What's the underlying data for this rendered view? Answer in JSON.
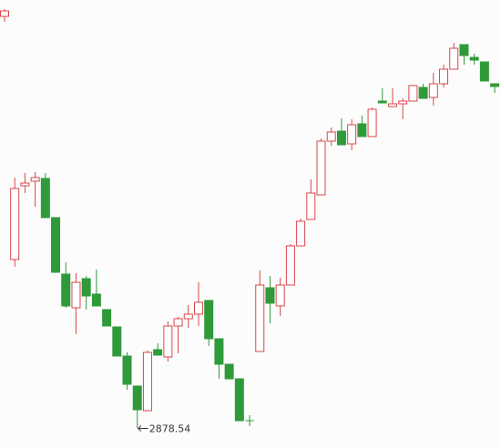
{
  "chart_data": {
    "type": "candlestick",
    "up_color": "#d9474b",
    "down_color": "#2f9a3a",
    "ylim": [
      2857,
      3349
    ],
    "open": [
      3331,
      3064,
      3145,
      3150,
      3153,
      3110,
      3048,
      3011,
      3043,
      3026,
      3009,
      2990,
      2958,
      2925,
      2898,
      2965,
      2957,
      2991,
      2999,
      3004,
      3019,
      2977,
      2949,
      2933,
      2887,
      2963,
      3033,
      3013,
      3036,
      3079,
      3108,
      3135,
      3194,
      3205,
      3191,
      3213,
      3199,
      3238,
      3232,
      3235,
      3238,
      3253,
      3242,
      3257,
      3273,
      3300,
      3286,
      3281,
      3257
    ],
    "high": [
      3339,
      3154,
      3159,
      3160,
      3159,
      3110,
      3061,
      3049,
      3046,
      3053,
      3009,
      2990,
      2962,
      2925,
      2964,
      2972,
      2996,
      3001,
      3014,
      3039,
      3019,
      2977,
      2949,
      2933,
      2893,
      3052,
      3046,
      3044,
      3081,
      3109,
      3152,
      3197,
      3209,
      3219,
      3218,
      3222,
      3231,
      3252,
      3252,
      3241,
      3256,
      3257,
      3269,
      3278,
      3302,
      3300,
      3290,
      3281,
      3257
    ],
    "low": [
      3325,
      3056,
      3137,
      3122,
      3110,
      3050,
      3011,
      2982,
      3009,
      3013,
      2991,
      2958,
      2921,
      2878.54,
      2898,
      2959,
      2952,
      2961,
      2989,
      2991,
      2969,
      2933,
      2933,
      2887,
      2881,
      2963,
      2994,
      3002,
      3036,
      3079,
      3108,
      3135,
      3189,
      3190,
      3184,
      3199,
      3199,
      3236,
      3232,
      3218,
      3238,
      3241,
      3233,
      3253,
      3273,
      3278,
      3278,
      3260,
      3247
    ],
    "close": [
      3337,
      3142,
      3148,
      3154,
      3110,
      3050,
      3013,
      3039,
      3024,
      3013,
      2991,
      2958,
      2927,
      2899,
      2962,
      2959,
      2991,
      2999,
      3004,
      3017,
      2977,
      2949,
      2933,
      2887,
      2887,
      3036,
      3016,
      3036,
      3079,
      3106,
      3137,
      3194,
      3204,
      3190,
      3212,
      3199,
      3229,
      3236,
      3235,
      3238,
      3255,
      3241,
      3257,
      3273,
      3296,
      3288,
      3283,
      3260,
      3254
    ],
    "annotation_index": 13
  }
}
